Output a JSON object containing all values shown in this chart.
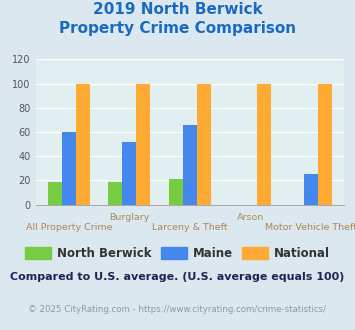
{
  "title_line1": "2019 North Berwick",
  "title_line2": "Property Crime Comparison",
  "title_color": "#1a6bbf",
  "categories": [
    "All Property Crime",
    "Burglary",
    "Larceny & Theft",
    "Arson",
    "Motor Vehicle Theft"
  ],
  "top_labels": [
    [
      "Burglary",
      1
    ],
    [
      "Arson",
      3
    ]
  ],
  "bottom_labels": [
    [
      "All Property Crime",
      0
    ],
    [
      "Larceny & Theft",
      2
    ],
    [
      "Motor Vehicle Theft",
      4
    ]
  ],
  "north_berwick": [
    19,
    19,
    21,
    0,
    0
  ],
  "maine": [
    60,
    52,
    66,
    0,
    25
  ],
  "national": [
    100,
    100,
    100,
    100,
    100
  ],
  "nb_color": "#77cc44",
  "maine_color": "#4488ee",
  "national_color": "#ffaa33",
  "ylim": [
    0,
    120
  ],
  "yticks": [
    0,
    20,
    40,
    60,
    80,
    100,
    120
  ],
  "bg_color": "#dce8f0",
  "plot_bg": "#e2eff0",
  "legend_labels": [
    "North Berwick",
    "Maine",
    "National"
  ],
  "footnote1": "Compared to U.S. average. (U.S. average equals 100)",
  "footnote2": "© 2025 CityRating.com - https://www.cityrating.com/crime-statistics/",
  "footnote1_color": "#222255",
  "footnote2_color": "#8899aa",
  "label_color": "#aa8855"
}
